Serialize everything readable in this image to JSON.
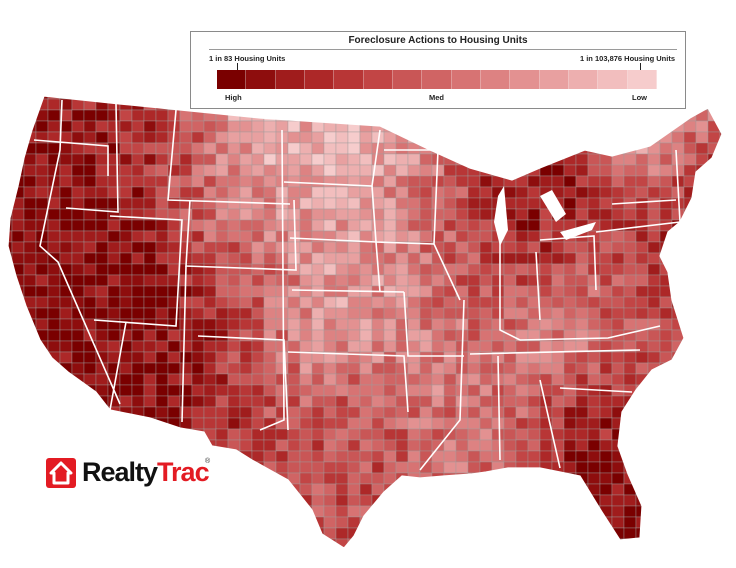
{
  "legend": {
    "title": "Foreclosure Actions to Housing Units",
    "high_ratio": "1 in 83 Housing Units",
    "low_ratio": "1 in 103,876 Housing Units",
    "high_label": "High",
    "med_label": "Med",
    "low_label": "Low",
    "scale_colors": [
      "#7a0000",
      "#8e0d0d",
      "#a01c1c",
      "#ad2828",
      "#b83636",
      "#c24545",
      "#c95656",
      "#d06464",
      "#d77373",
      "#dd8282",
      "#e39191",
      "#e8a0a0",
      "#edafaf",
      "#f2bebe",
      "#f6cccc"
    ]
  },
  "brand": {
    "name_main": "Realty",
    "name_tail": "Trac",
    "registered": "®",
    "logo_icon": "house-icon",
    "accent_color": "#e31b23"
  },
  "map": {
    "subject": "contiguous-united-states-county-choropleth",
    "border_color": "#ffffff",
    "county_line_color": "#9c9c9c"
  }
}
